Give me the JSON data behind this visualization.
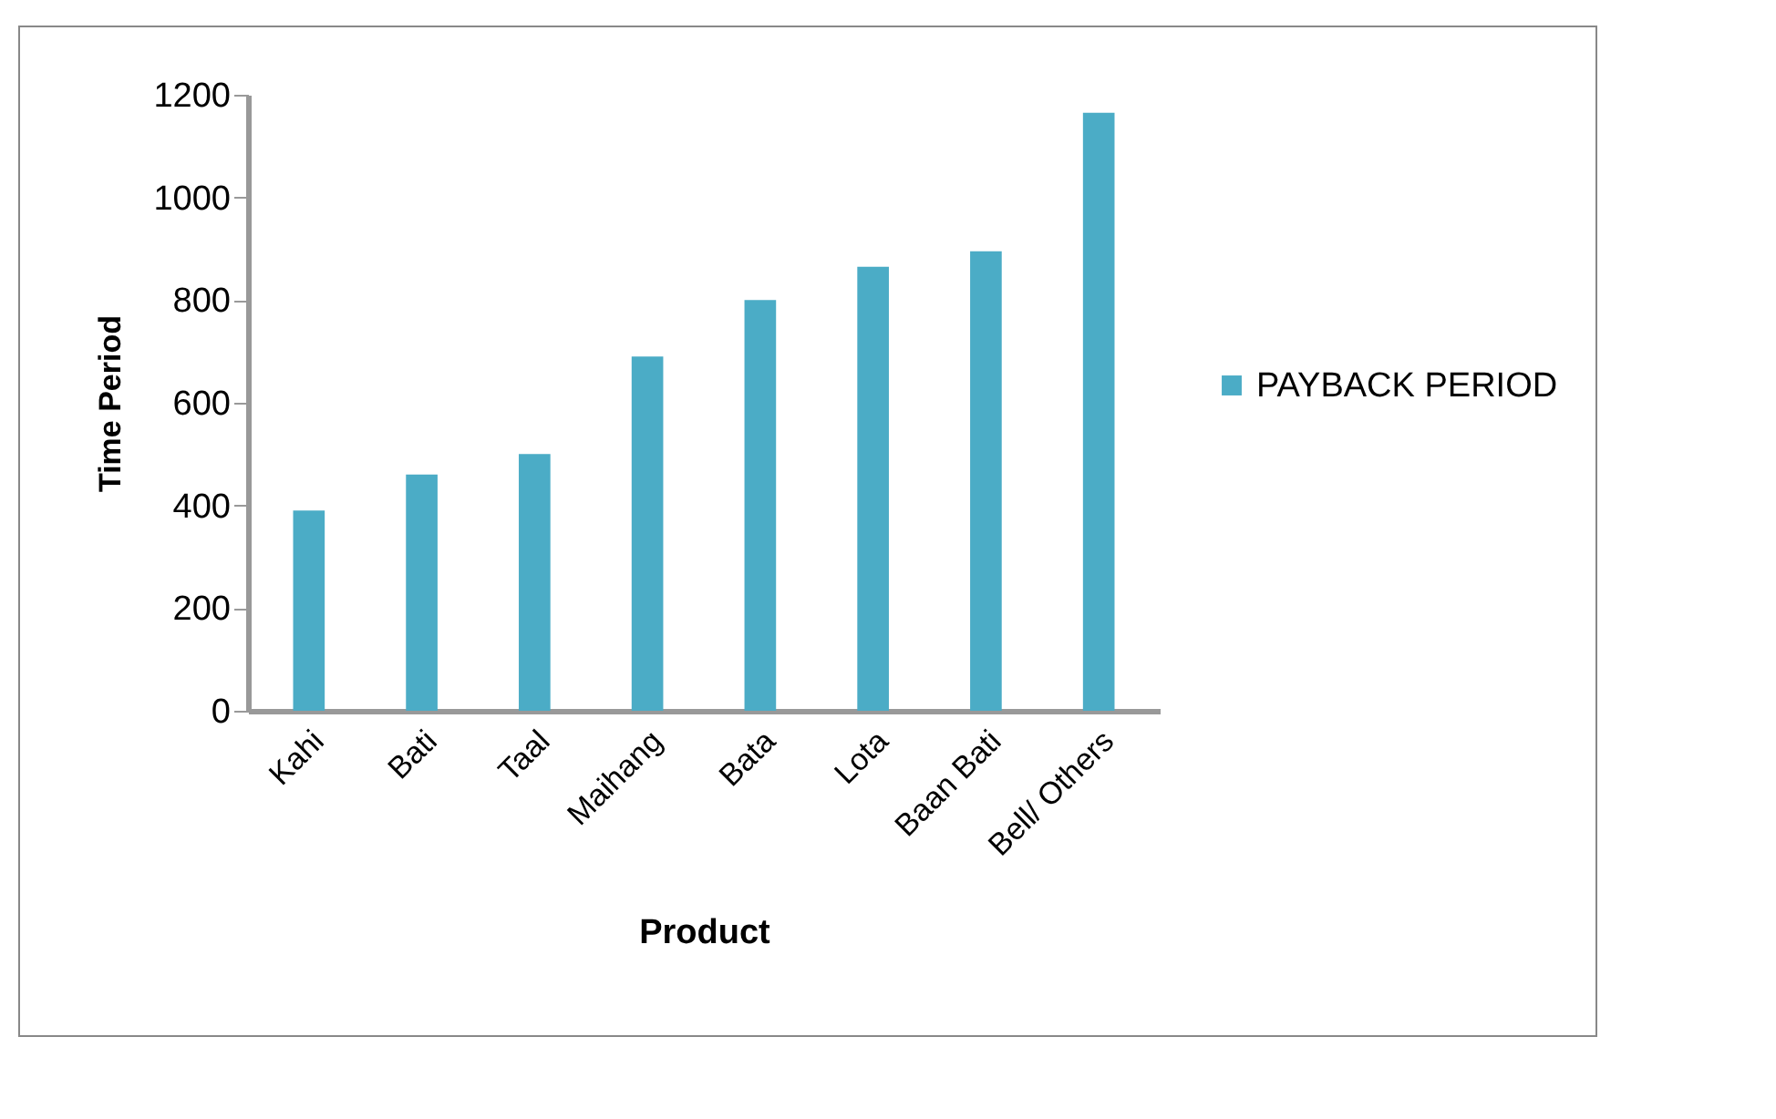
{
  "chart_data": {
    "type": "bar",
    "xlabel": "Product",
    "ylabel": "Time Period",
    "categories": [
      "Kahi",
      "Bati",
      "Taal",
      "Maihang",
      "Bata",
      "Lota",
      "Baan Bati",
      "Bell/ Others"
    ],
    "series": [
      {
        "name": "PAYBACK PERIOD",
        "color": "#4bacc6",
        "values": [
          390,
          460,
          500,
          690,
          800,
          865,
          895,
          1165
        ]
      }
    ],
    "ylim": [
      0,
      1200
    ],
    "yticks": [
      0,
      200,
      400,
      600,
      800,
      1000,
      1200
    ],
    "grid": false,
    "legend": "right"
  }
}
